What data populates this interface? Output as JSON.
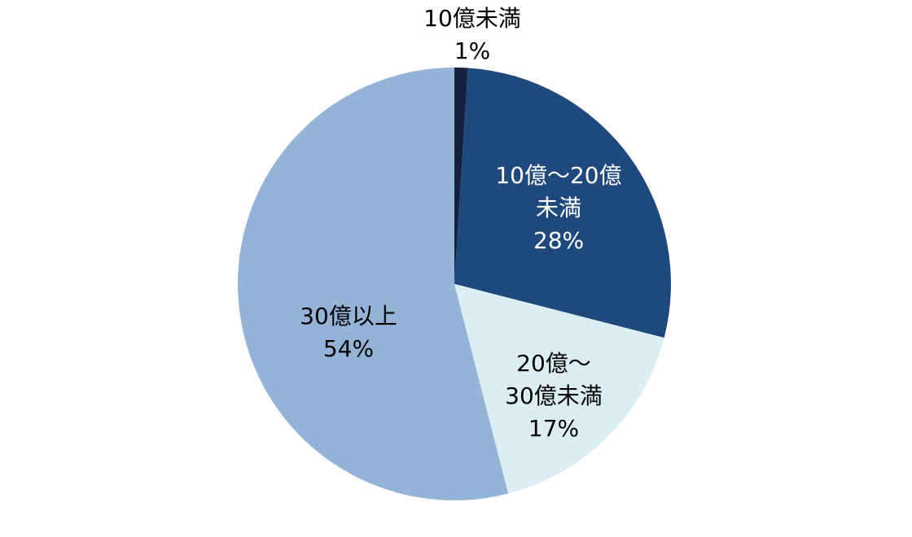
{
  "chart_data": {
    "type": "pie",
    "title": "",
    "start_angle_deg": 0,
    "direction": "clockwise",
    "legend": "none",
    "slices": [
      {
        "label_lines": [
          "10億未満"
        ],
        "label": "10億未満",
        "value": 1,
        "value_label": "1%",
        "color": "#14223f",
        "label_color": "#000000",
        "label_placement": "outside"
      },
      {
        "label_lines": [
          "10億～20億",
          "未満"
        ],
        "label": "10億～20億未満",
        "value": 28,
        "value_label": "28%",
        "color": "#1f497d",
        "label_color": "#ffffff",
        "label_placement": "inside"
      },
      {
        "label_lines": [
          "20億～",
          "30億未満"
        ],
        "label": "20億～30億未満",
        "value": 17,
        "value_label": "17%",
        "color": "#dbeef4",
        "label_color": "#000000",
        "label_placement": "inside"
      },
      {
        "label_lines": [
          "30億以上"
        ],
        "label": "30億以上",
        "value": 54,
        "value_label": "54%",
        "color": "#95b3d7",
        "label_color": "#000000",
        "label_placement": "inside"
      }
    ]
  }
}
